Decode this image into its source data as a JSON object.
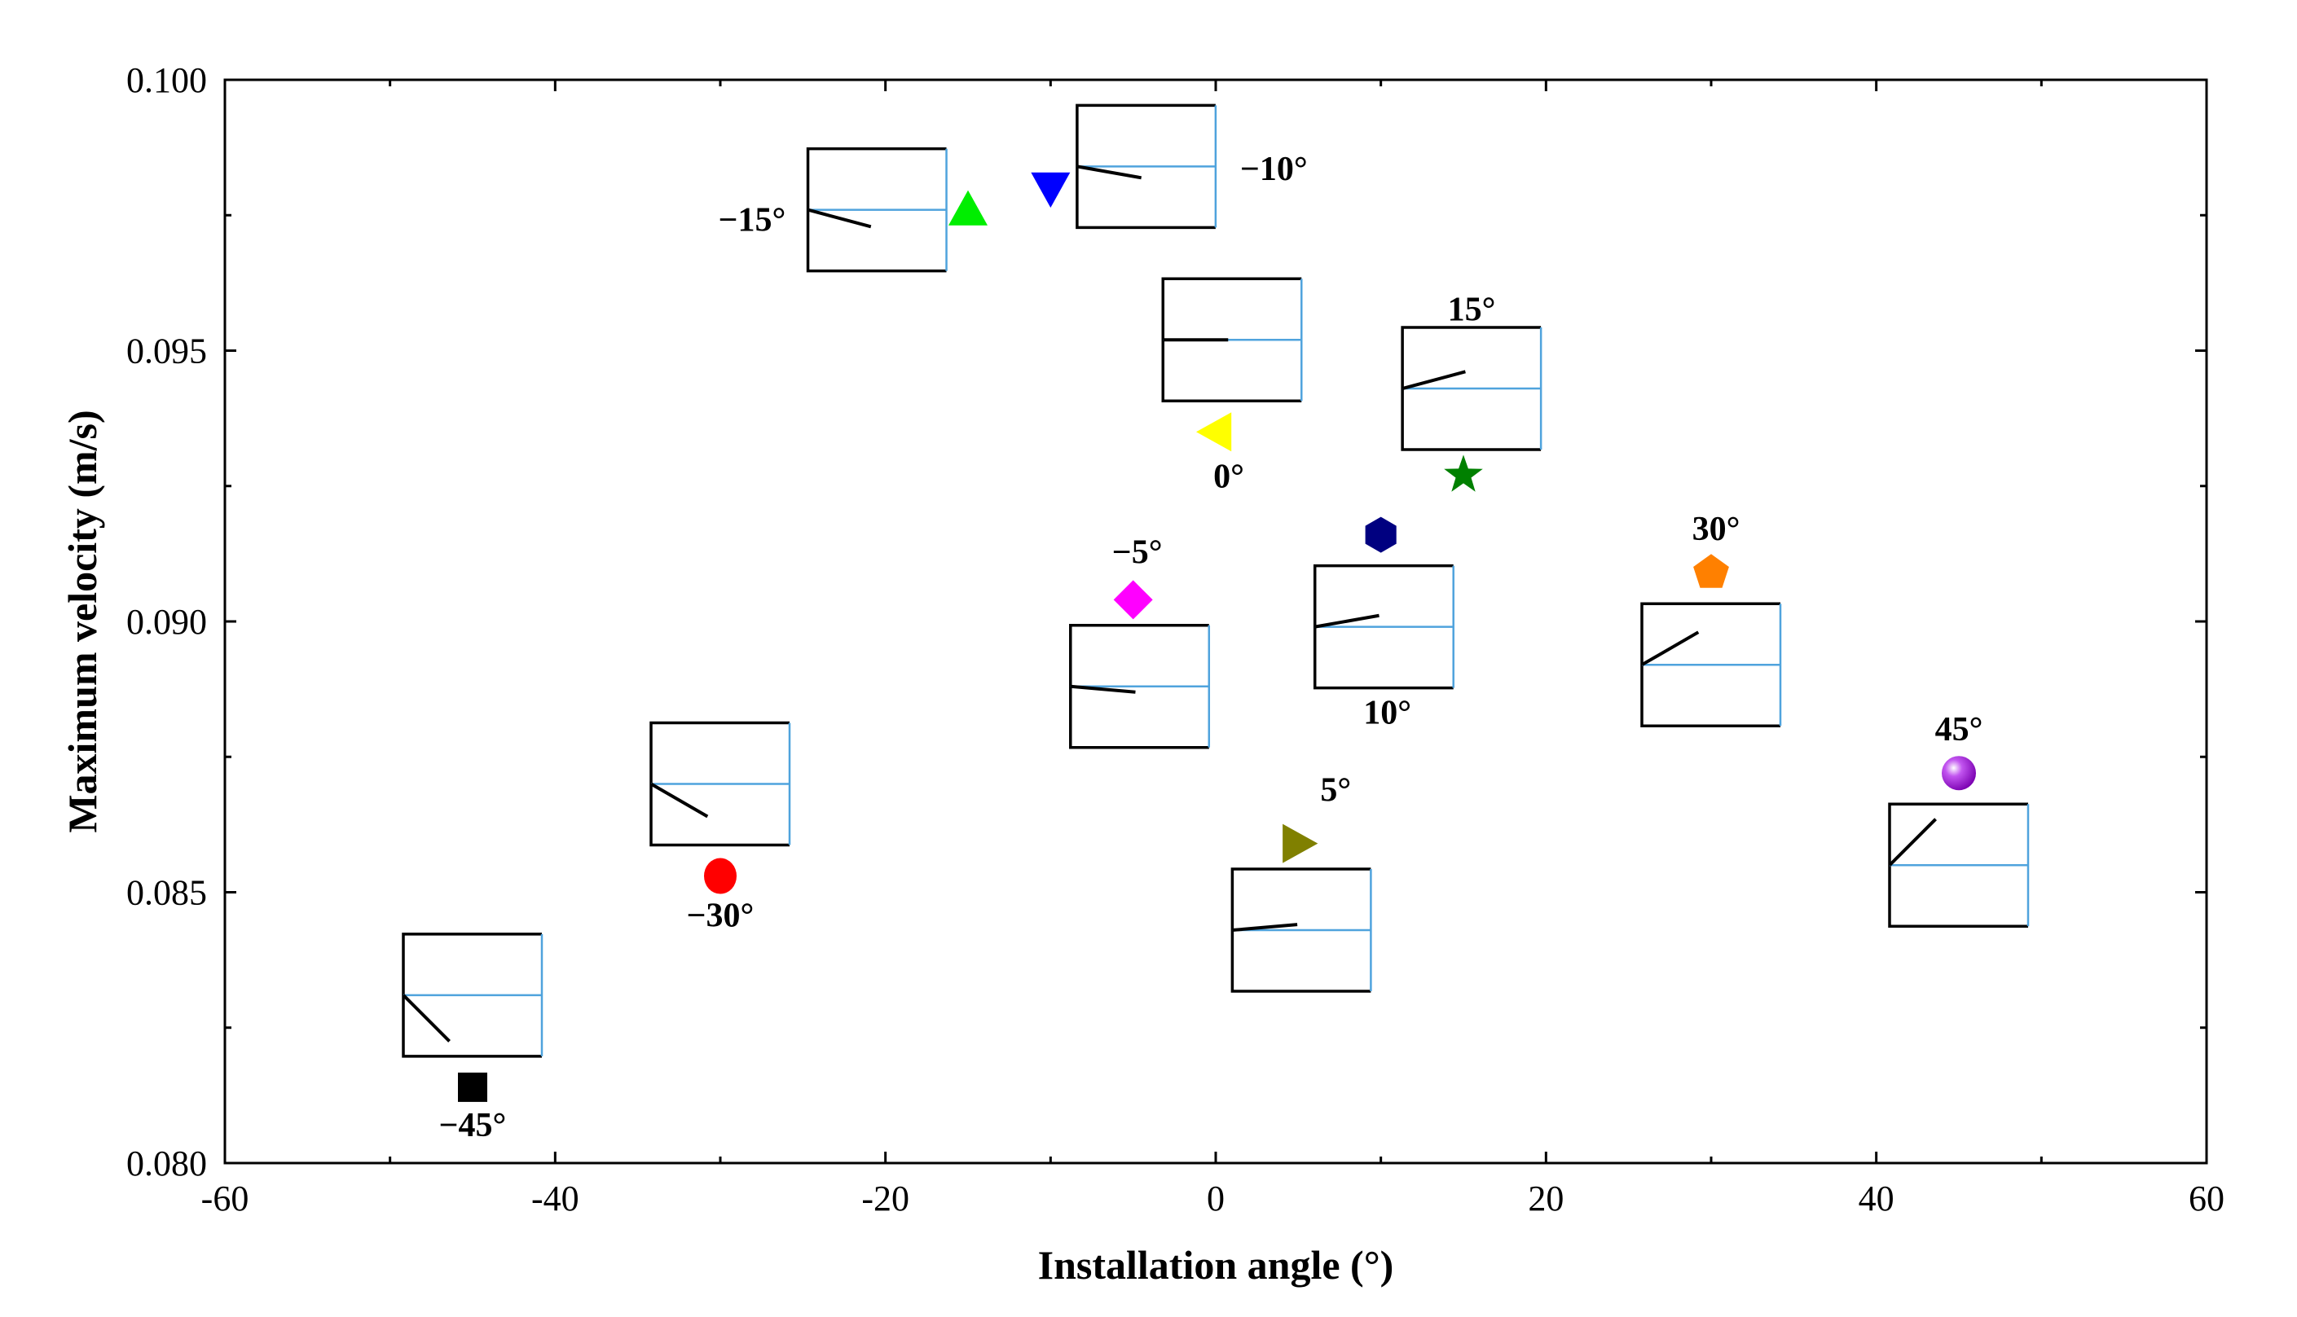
{
  "chart_data": {
    "type": "scatter",
    "title": "",
    "xlabel": "Installation angle (°)",
    "ylabel": "Maximum  velocity (m/s)",
    "xlim": [
      -60,
      60
    ],
    "ylim": [
      0.08,
      0.1
    ],
    "xticks": [
      -60,
      -40,
      -20,
      0,
      20,
      40,
      60
    ],
    "xtick_labels": [
      "-60",
      "-40",
      "-20",
      "0",
      "20",
      "40",
      "60"
    ],
    "yticks": [
      0.08,
      0.085,
      0.09,
      0.095,
      0.1
    ],
    "ytick_labels": [
      "0.080",
      "0.085",
      "0.090",
      "0.095",
      "0.100"
    ],
    "grid": false,
    "points": [
      {
        "x": -45,
        "y": 0.0814,
        "label": "−45°",
        "marker": "square",
        "color": "#000000"
      },
      {
        "x": -30,
        "y": 0.0853,
        "label": "−30°",
        "marker": "circle",
        "color": "#ff0000"
      },
      {
        "x": -15,
        "y": 0.0976,
        "label": "−15°",
        "marker": "triangle-up",
        "color": "#00ee00"
      },
      {
        "x": -10,
        "y": 0.098,
        "label": "−10°",
        "marker": "triangle-down",
        "color": "#0000ff"
      },
      {
        "x": -5,
        "y": 0.0904,
        "label": "−5°",
        "marker": "diamond",
        "color": "#ff00ff"
      },
      {
        "x": 0,
        "y": 0.0935,
        "label": "0°",
        "marker": "triangle-left",
        "color": "#ffff00"
      },
      {
        "x": 5,
        "y": 0.0859,
        "label": "5°",
        "marker": "triangle-right",
        "color": "#808000"
      },
      {
        "x": 10,
        "y": 0.0916,
        "label": "10°",
        "marker": "hexagon",
        "color": "#000080"
      },
      {
        "x": 15,
        "y": 0.0927,
        "label": "15°",
        "marker": "star",
        "color": "#008000"
      },
      {
        "x": 30,
        "y": 0.0909,
        "label": "30°",
        "marker": "pentagon",
        "color": "#ff8000"
      },
      {
        "x": 45,
        "y": 0.0872,
        "label": "45°",
        "marker": "sphere",
        "color": "#9900cc"
      }
    ],
    "insets": [
      {
        "angle": -45,
        "x_center": -45,
        "y_center": 0.0831
      },
      {
        "angle": -30,
        "x_center": -30,
        "y_center": 0.087
      },
      {
        "angle": -15,
        "x_center": -20.5,
        "y_center": 0.0976
      },
      {
        "angle": -10,
        "x_center": -4.2,
        "y_center": 0.0984
      },
      {
        "angle": -5,
        "x_center": -4.6,
        "y_center": 0.0888
      },
      {
        "angle": 0,
        "x_center": 1.0,
        "y_center": 0.0952
      },
      {
        "angle": 5,
        "x_center": 5.2,
        "y_center": 0.0843
      },
      {
        "angle": 10,
        "x_center": 10.2,
        "y_center": 0.0899
      },
      {
        "angle": 15,
        "x_center": 15.5,
        "y_center": 0.0943
      },
      {
        "angle": 30,
        "x_center": 30.0,
        "y_center": 0.0892
      },
      {
        "angle": 45,
        "x_center": 45.0,
        "y_center": 0.0855
      }
    ]
  }
}
